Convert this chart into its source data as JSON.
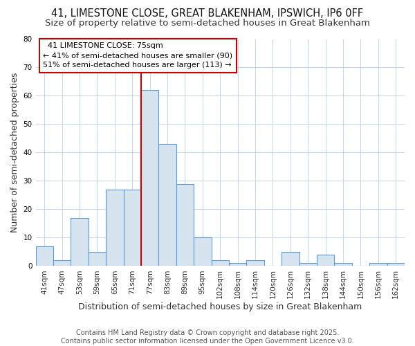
{
  "title1": "41, LIMESTONE CLOSE, GREAT BLAKENHAM, IPSWICH, IP6 0FF",
  "title2": "Size of property relative to semi-detached houses in Great Blakenham",
  "xlabel": "Distribution of semi-detached houses by size in Great Blakenham",
  "ylabel": "Number of semi-detached properties",
  "footnote": "Contains HM Land Registry data © Crown copyright and database right 2025.\nContains public sector information licensed under the Open Government Licence v3.0.",
  "categories": [
    "41sqm",
    "47sqm",
    "53sqm",
    "59sqm",
    "65sqm",
    "71sqm",
    "77sqm",
    "83sqm",
    "89sqm",
    "95sqm",
    "102sqm",
    "108sqm",
    "114sqm",
    "120sqm",
    "126sqm",
    "132sqm",
    "138sqm",
    "144sqm",
    "150sqm",
    "156sqm",
    "162sqm"
  ],
  "values": [
    7,
    2,
    17,
    5,
    27,
    27,
    62,
    43,
    29,
    10,
    2,
    1,
    2,
    0,
    5,
    1,
    4,
    1,
    0,
    1,
    1
  ],
  "bar_color": "#d6e4f0",
  "bar_edge_color": "#5b9bd5",
  "reference_line_index": 6,
  "reference_line_label": "41 LIMESTONE CLOSE: 75sqm",
  "annotation_line1": "← 41% of semi-detached houses are smaller (90)",
  "annotation_line2": "51% of semi-detached houses are larger (113) →",
  "ylim": [
    0,
    80
  ],
  "yticks": [
    0,
    10,
    20,
    30,
    40,
    50,
    60,
    70,
    80
  ],
  "background_color": "#ffffff",
  "plot_bg_color": "#ffffff",
  "grid_color": "#c8d8e8",
  "box_color": "#cc0000",
  "title_fontsize": 10.5,
  "subtitle_fontsize": 9.5,
  "tick_fontsize": 7.5,
  "label_fontsize": 9,
  "footnote_fontsize": 7
}
